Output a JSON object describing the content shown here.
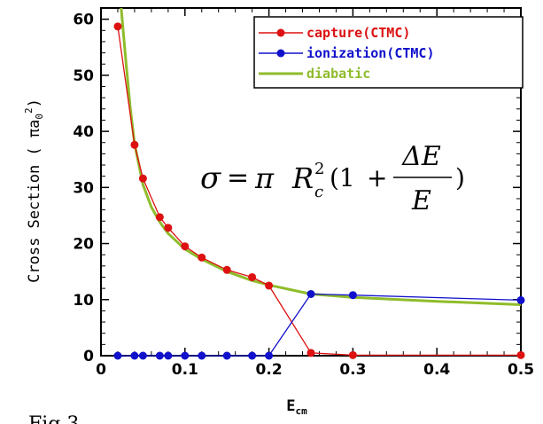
{
  "chart_data": {
    "type": "line",
    "xlabel": "E",
    "xlabel_sub": "cm",
    "ylabel": "Cross Section ( πa",
    "ylabel_sub": "0",
    "ylabel_sup": "2",
    "ylabel_close": ")",
    "xlim": [
      0,
      0.5
    ],
    "ylim": [
      0,
      62
    ],
    "x_ticks": [
      0,
      0.1,
      0.2,
      0.3,
      0.4,
      0.5
    ],
    "x_tick_labels": [
      "0",
      "0.1",
      "0.2",
      "0.3",
      "0.4",
      "0.5"
    ],
    "y_ticks": [
      0,
      10,
      20,
      30,
      40,
      50,
      60
    ],
    "y_tick_labels": [
      "0",
      "10",
      "20",
      "30",
      "40",
      "50",
      "60"
    ],
    "grid": false,
    "legend_position": "top-right",
    "series": [
      {
        "name": "capture(CTMC)",
        "color": "#dd1111",
        "marker": "circle",
        "x": [
          0.02,
          0.04,
          0.05,
          0.07,
          0.08,
          0.1,
          0.12,
          0.15,
          0.18,
          0.2,
          0.25,
          0.3,
          0.5
        ],
        "y": [
          58.7,
          37.6,
          31.6,
          24.7,
          22.8,
          19.5,
          17.5,
          15.3,
          14.0,
          12.5,
          0.5,
          0.1,
          0.1
        ]
      },
      {
        "name": "ionization(CTMC)",
        "color": "#1111cc",
        "marker": "circle",
        "x": [
          0.02,
          0.04,
          0.05,
          0.07,
          0.08,
          0.1,
          0.12,
          0.15,
          0.18,
          0.2,
          0.25,
          0.3,
          0.5
        ],
        "y": [
          0,
          0,
          0,
          0,
          0,
          0,
          0,
          0,
          0,
          0,
          11.0,
          10.8,
          9.9
        ]
      },
      {
        "name": "diabatic",
        "color": "#8fbc2b",
        "marker": "none",
        "x": [
          0.024,
          0.03,
          0.035,
          0.04,
          0.05,
          0.06,
          0.07,
          0.08,
          0.1,
          0.12,
          0.15,
          0.18,
          0.2,
          0.25,
          0.3,
          0.4,
          0.5
        ],
        "y": [
          62,
          52.0,
          44.0,
          37.8,
          30.5,
          26.5,
          23.8,
          21.8,
          19.0,
          17.2,
          15.0,
          13.4,
          12.6,
          11.0,
          10.4,
          9.7,
          9.1
        ]
      }
    ],
    "annotation": {
      "sigma": "σ",
      "eq": "=",
      "pi": "π",
      "R": "R",
      "R_sub": "c",
      "R_sup": "2",
      "open": "(1",
      "plus": "+",
      "numerator": "ΔE",
      "denominator": "E",
      "close": ")"
    },
    "caption_fragment": "Fig.3"
  }
}
